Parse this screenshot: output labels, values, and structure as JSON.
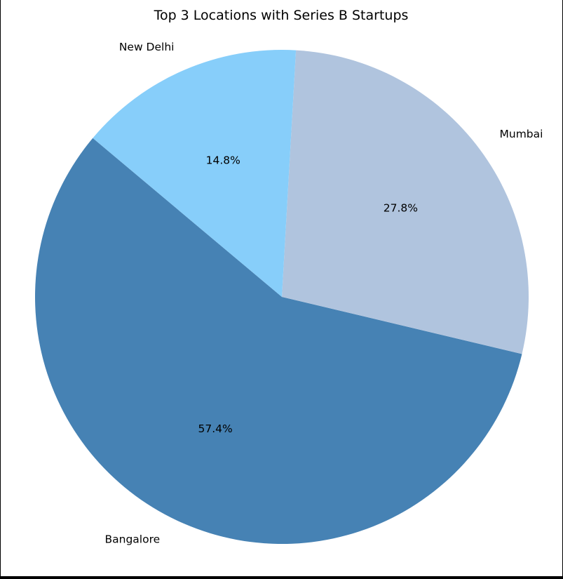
{
  "chart_data": {
    "type": "pie",
    "title": "Top 3 Locations with Series B Startups",
    "categories": [
      "Bangalore",
      "Mumbai",
      "New Delhi"
    ],
    "values": [
      57.4,
      27.8,
      14.8
    ],
    "labels": [
      "57.4%",
      "27.8%",
      "14.8%"
    ],
    "colors": [
      "#4682b4",
      "#b0c4de",
      "#87cefa"
    ],
    "start_angle_deg": 140,
    "direction": "counterclockwise",
    "legend": "none"
  }
}
